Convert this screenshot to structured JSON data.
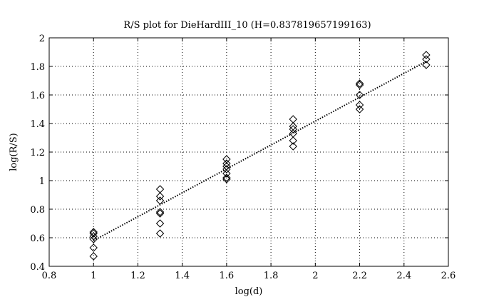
{
  "chart_data": {
    "type": "scatter",
    "title": "R/S plot for DieHardIII_10 (H=0.837819657199163)",
    "xlabel": "log(d)",
    "ylabel": "log(R/S)",
    "xlim": [
      0.8,
      2.6
    ],
    "ylim": [
      0.4,
      2.0
    ],
    "xticks": [
      "0.8",
      "1",
      "1.2",
      "1.4",
      "1.6",
      "1.8",
      "2",
      "2.2",
      "2.4",
      "2.6"
    ],
    "yticks": [
      "0.4",
      "0.6",
      "0.8",
      "1",
      "1.2",
      "1.4",
      "1.6",
      "1.8",
      "2"
    ],
    "grid": true,
    "marker": "diamond",
    "points": [
      {
        "x": 1.0,
        "y": 0.64
      },
      {
        "x": 1.0,
        "y": 0.63
      },
      {
        "x": 1.0,
        "y": 0.61
      },
      {
        "x": 1.0,
        "y": 0.59
      },
      {
        "x": 1.0,
        "y": 0.53
      },
      {
        "x": 1.0,
        "y": 0.47
      },
      {
        "x": 1.3,
        "y": 0.94
      },
      {
        "x": 1.3,
        "y": 0.89
      },
      {
        "x": 1.3,
        "y": 0.86
      },
      {
        "x": 1.3,
        "y": 0.78
      },
      {
        "x": 1.3,
        "y": 0.77
      },
      {
        "x": 1.3,
        "y": 0.7
      },
      {
        "x": 1.3,
        "y": 0.63
      },
      {
        "x": 1.6,
        "y": 1.15
      },
      {
        "x": 1.6,
        "y": 1.12
      },
      {
        "x": 1.6,
        "y": 1.1
      },
      {
        "x": 1.6,
        "y": 1.08
      },
      {
        "x": 1.6,
        "y": 1.05
      },
      {
        "x": 1.6,
        "y": 1.02
      },
      {
        "x": 1.6,
        "y": 1.01
      },
      {
        "x": 1.9,
        "y": 1.43
      },
      {
        "x": 1.9,
        "y": 1.38
      },
      {
        "x": 1.9,
        "y": 1.36
      },
      {
        "x": 1.9,
        "y": 1.33
      },
      {
        "x": 1.9,
        "y": 1.28
      },
      {
        "x": 1.9,
        "y": 1.24
      },
      {
        "x": 2.2,
        "y": 1.68
      },
      {
        "x": 2.2,
        "y": 1.67
      },
      {
        "x": 2.2,
        "y": 1.6
      },
      {
        "x": 2.2,
        "y": 1.53
      },
      {
        "x": 2.2,
        "y": 1.5
      },
      {
        "x": 2.5,
        "y": 1.88
      },
      {
        "x": 2.5,
        "y": 1.85
      },
      {
        "x": 2.5,
        "y": 1.81
      }
    ],
    "fit_line": {
      "x": [
        1.0,
        2.5
      ],
      "y": [
        0.58,
        1.835
      ],
      "style": "dotted"
    }
  }
}
